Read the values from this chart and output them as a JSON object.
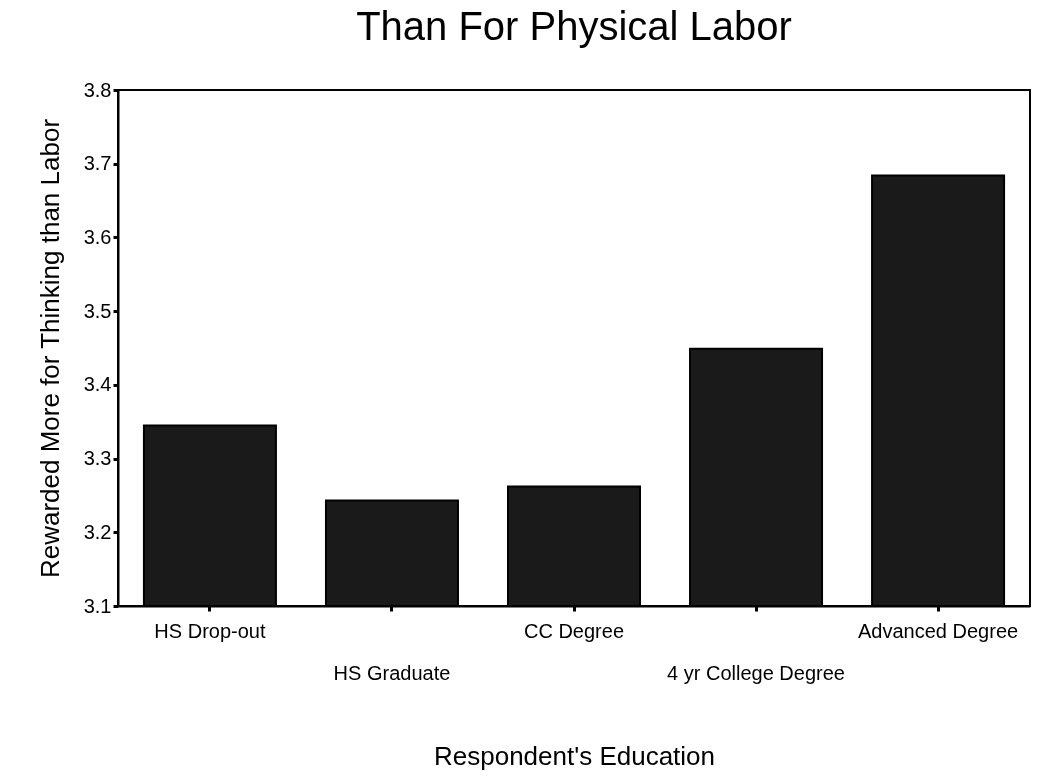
{
  "chart_data": {
    "type": "bar",
    "title": "Than For Physical Labor",
    "xlabel": "Respondent's Education",
    "ylabel": "Rewarded More for Thinking than Labor",
    "categories": [
      "HS Drop-out",
      "HS Graduate",
      "CC Degree",
      "4 yr College Degree",
      "Advanced Degree"
    ],
    "values": [
      3.345,
      3.243,
      3.262,
      3.449,
      3.684
    ],
    "color": "#1a1a1a",
    "ylim": [
      3.1,
      3.8
    ],
    "yticks": [
      3.1,
      3.2,
      3.3,
      3.4,
      3.5,
      3.6,
      3.7,
      3.8
    ],
    "grid": false
  }
}
